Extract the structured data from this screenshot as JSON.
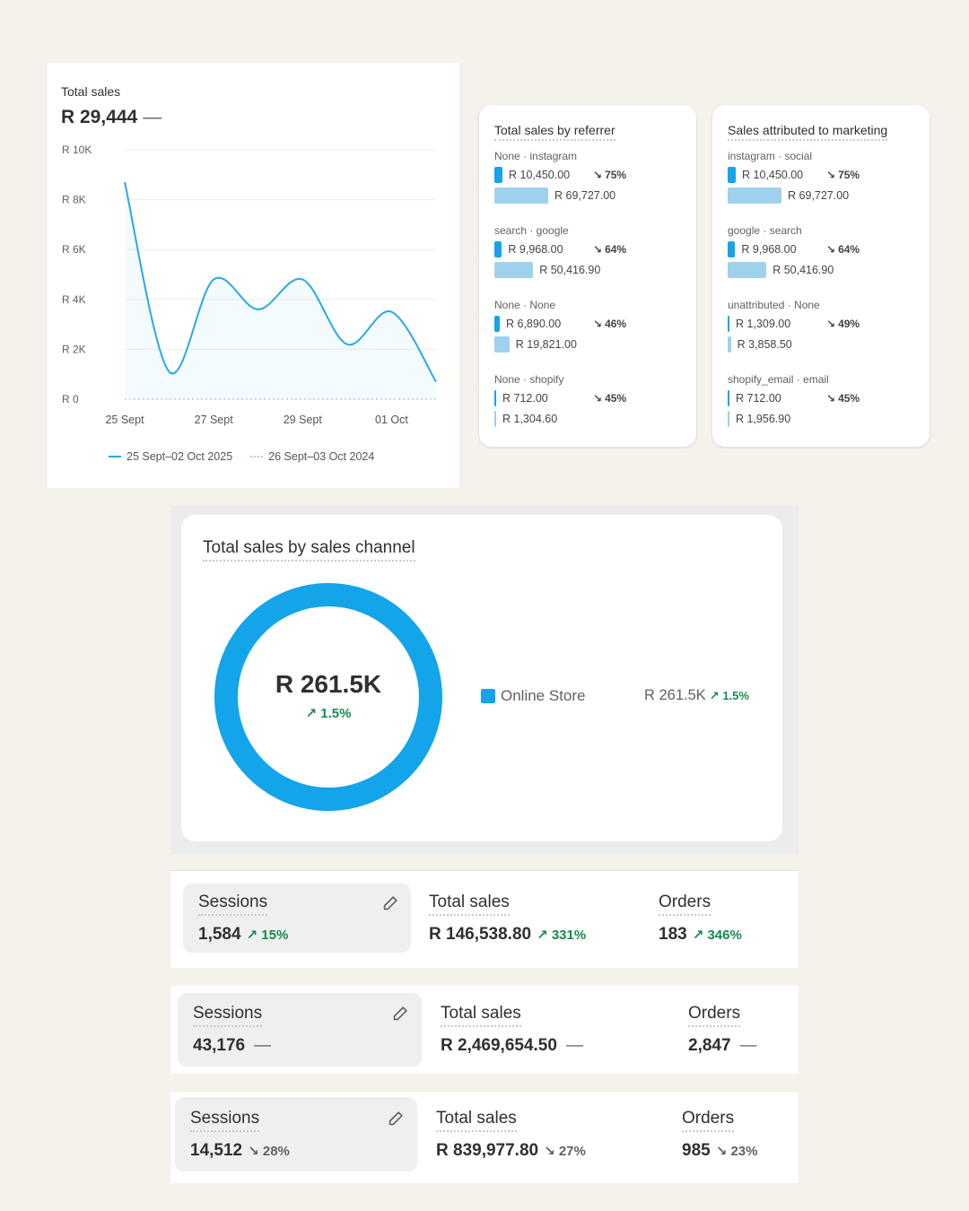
{
  "total_sales_card": {
    "title": "Total sales",
    "value": "R 29,444",
    "change": "—",
    "y_ticks": [
      "R 10K",
      "R 8K",
      "R 6K",
      "R 4K",
      "R 2K",
      "R 0"
    ],
    "x_ticks": [
      "25 Sept",
      "27 Sept",
      "29 Sept",
      "01 Oct"
    ],
    "legend": [
      "25 Sept–02 Oct 2025",
      "26 Sept–03 Oct 2024"
    ]
  },
  "chart_data": {
    "type": "line",
    "ylim": [
      0,
      10000
    ],
    "x": [
      "25 Sept",
      "26 Sept",
      "27 Sept",
      "28 Sept",
      "29 Sept",
      "30 Sept",
      "01 Oct",
      "02 Oct"
    ],
    "series": [
      {
        "name": "25 Sept–02 Oct 2025",
        "values": [
          8700,
          1100,
          4800,
          3600,
          4800,
          2200,
          3500,
          700
        ]
      },
      {
        "name": "26 Sept–03 Oct 2024",
        "values": [
          0,
          0,
          0,
          0,
          0,
          0,
          0,
          0
        ]
      }
    ],
    "colors": {
      "current": "#29a9e6",
      "previous": "#9ad3f0"
    }
  },
  "referrer_card": {
    "title": "Total sales by referrer",
    "groups": [
      {
        "label": "None · instagram",
        "current": "R 10,450.00",
        "change": "75%",
        "previous": "R 69,727.00",
        "current_share": 0.15,
        "previous_share": 1.0
      },
      {
        "label": "search · google",
        "current": "R 9,968.00",
        "change": "64%",
        "previous": "R 50,416.90",
        "current_share": 0.14,
        "previous_share": 0.72
      },
      {
        "label": "None · None",
        "current": "R 6,890.00",
        "change": "46%",
        "previous": "R 19,821.00",
        "current_share": 0.1,
        "previous_share": 0.28
      },
      {
        "label": "None · shopify",
        "current": "R 712.00",
        "change": "45%",
        "previous": "R 1,304.60",
        "current_share": 0.01,
        "previous_share": 0.02
      }
    ]
  },
  "marketing_card": {
    "title": "Sales attributed to marketing",
    "groups": [
      {
        "label": "instagram · social",
        "current": "R 10,450.00",
        "change": "75%",
        "previous": "R 69,727.00",
        "current_share": 0.15,
        "previous_share": 1.0
      },
      {
        "label": "google · search",
        "current": "R 9,968.00",
        "change": "64%",
        "previous": "R 50,416.90",
        "current_share": 0.14,
        "previous_share": 0.72
      },
      {
        "label": "unattributed · None",
        "current": "R 1,309.00",
        "change": "49%",
        "previous": "R 3,858.50",
        "current_share": 0.02,
        "previous_share": 0.06
      },
      {
        "label": "shopify_email · email",
        "current": "R 712.00",
        "change": "45%",
        "previous": "R 1,956.90",
        "current_share": 0.01,
        "previous_share": 0.03
      }
    ]
  },
  "channel_card": {
    "title": "Total sales by sales channel",
    "total": "R 261.5K",
    "total_change": "1.5%",
    "channels": [
      {
        "name": "Online Store",
        "value": "R 261.5K",
        "change": "1.5%",
        "share": 1.0,
        "color": "#13a4ea"
      }
    ]
  },
  "metric_strips": [
    {
      "sessions_label": "Sessions",
      "sessions": "1,584",
      "sessions_change": "15%",
      "sales_label": "Total sales",
      "sales": "R 146,538.80",
      "sales_change": "331%",
      "orders_label": "Orders",
      "orders": "183",
      "orders_change": "346%"
    },
    {
      "sessions_label": "Sessions",
      "sessions": "43,176",
      "sessions_change": "—",
      "sales_label": "Total sales",
      "sales": "R 2,469,654.50",
      "sales_change": "—",
      "orders_label": "Orders",
      "orders": "2,847",
      "orders_change": "—"
    },
    {
      "sessions_label": "Sessions",
      "sessions": "14,512",
      "sessions_change": "28%",
      "sales_label": "Total sales",
      "sales": "R 839,977.80",
      "sales_change": "27%",
      "orders_label": "Orders",
      "orders": "985",
      "orders_change": "23%"
    }
  ]
}
